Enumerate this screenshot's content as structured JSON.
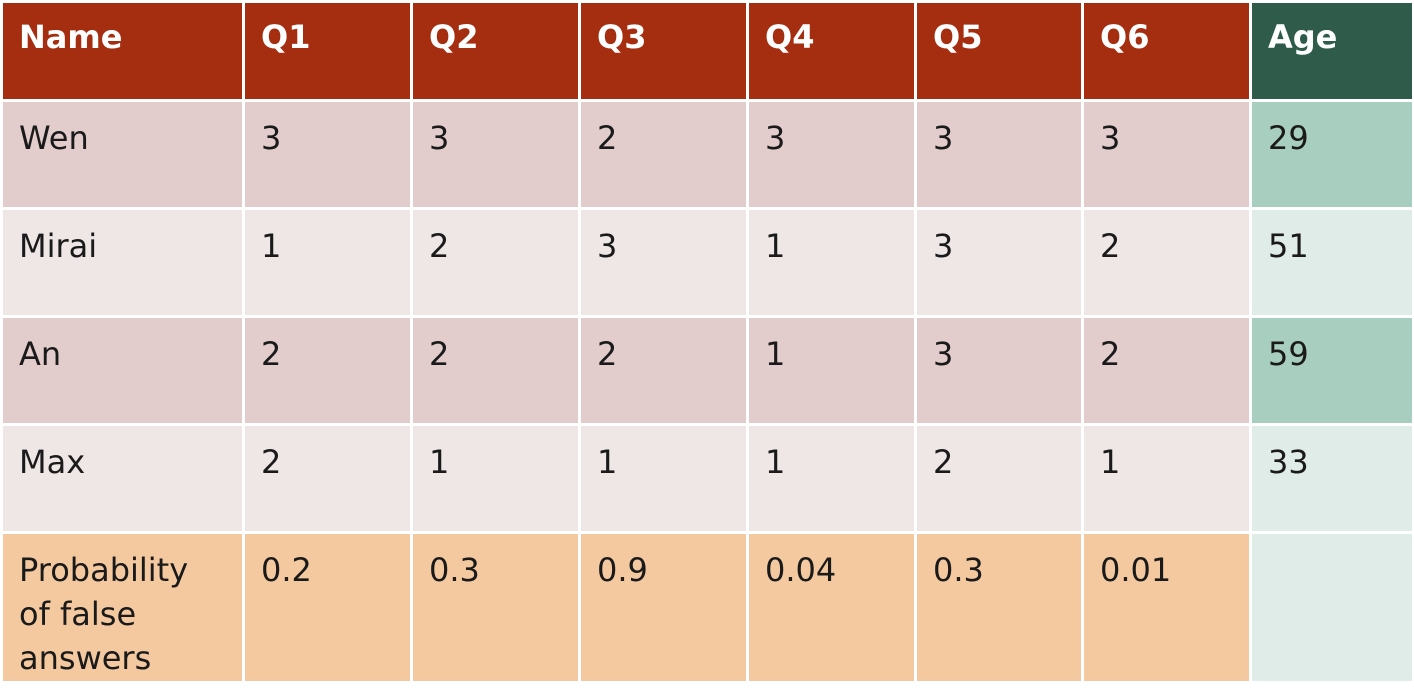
{
  "table": {
    "header": [
      "Name",
      "Q1",
      "Q2",
      "Q3",
      "Q4",
      "Q5",
      "Q6",
      "Age"
    ],
    "rows": [
      [
        "Wen",
        3,
        3,
        2,
        3,
        3,
        3,
        29
      ],
      [
        "Mirai",
        1,
        2,
        3,
        1,
        3,
        2,
        51
      ],
      [
        "An",
        2,
        2,
        2,
        1,
        3,
        2,
        59
      ],
      [
        "Max",
        2,
        1,
        1,
        1,
        2,
        1,
        33
      ],
      [
        "Probability of false answers",
        0.2,
        0.3,
        0.9,
        0.04,
        0.3,
        0.01
      ]
    ]
  }
}
